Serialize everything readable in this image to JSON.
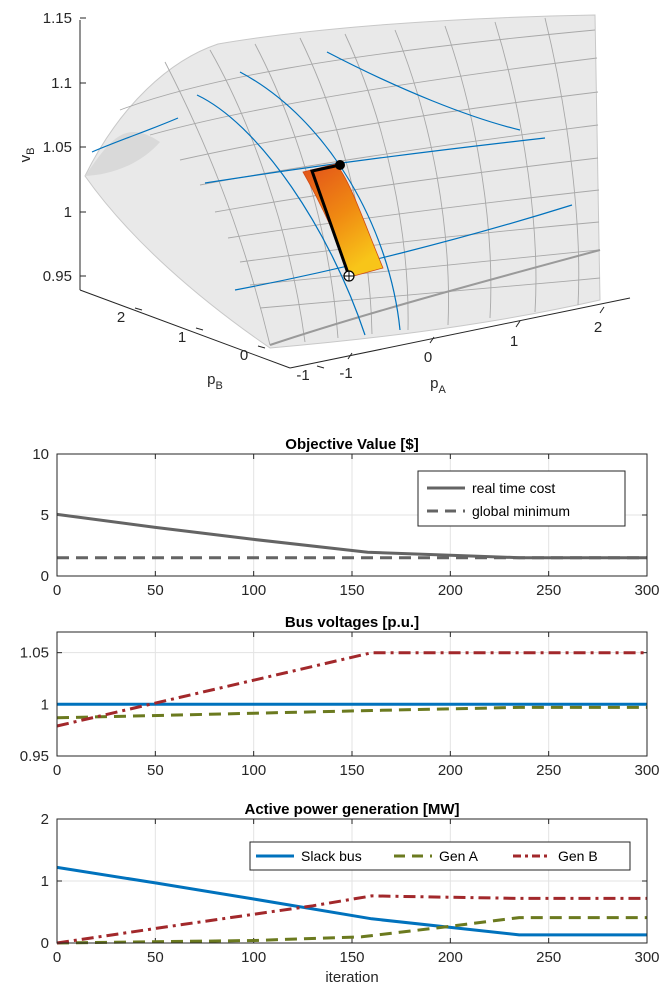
{
  "colors": {
    "gray": "#646464",
    "blue": "#0072BD",
    "olive": "#6B7A1F",
    "red": "#A2282B",
    "surface": "#E9E9E9",
    "grid": "#A5A5A5",
    "axis": "#262626"
  },
  "chart_data": [
    {
      "type": "surface3d",
      "zlabel": "v",
      "zlabel_sub": "B",
      "xlabel": "p",
      "xlabel_sub": "A",
      "ylabel": "p",
      "ylabel_sub": "B",
      "ztick_labels": [
        "0.95",
        "1",
        "1.05",
        "1.1",
        "1.15"
      ],
      "xtick_labels": [
        "-1",
        "0",
        "1",
        "2"
      ],
      "ytick_labels": [
        "-1",
        "0",
        "1",
        "2"
      ],
      "zlim": [
        0.95,
        1.15
      ],
      "feasible_region": "orange-yellow gradient patch",
      "trajectory": "black polyline from hollow start marker to filled end marker"
    },
    {
      "type": "line",
      "title": "Objective Value [$]",
      "xlim": [
        0,
        300
      ],
      "ylim": [
        0,
        10
      ],
      "xtick_labels": [
        "0",
        "50",
        "100",
        "150",
        "200",
        "250",
        "300"
      ],
      "ytick_labels": [
        "0",
        "5",
        "10"
      ],
      "grid": true,
      "legend_position": "top-right",
      "series": [
        {
          "name": "real time cost",
          "style": "solid",
          "color": "#646464",
          "points": [
            [
              0,
              5.05
            ],
            [
              50,
              3.98
            ],
            [
              100,
              3.0
            ],
            [
              158,
              1.95
            ],
            [
              200,
              1.7
            ],
            [
              235,
              1.5
            ],
            [
              300,
              1.5
            ]
          ]
        },
        {
          "name": "global minimum",
          "style": "dashed",
          "color": "#646464",
          "points": [
            [
              0,
              1.5
            ],
            [
              300,
              1.5
            ]
          ]
        }
      ]
    },
    {
      "type": "line",
      "title": "Bus voltages [p.u.]",
      "xlim": [
        0,
        300
      ],
      "ylim": [
        0.95,
        1.07
      ],
      "xtick_labels": [
        "0",
        "50",
        "100",
        "150",
        "200",
        "250",
        "300"
      ],
      "yticks": [
        0.95,
        1,
        1.05
      ],
      "ytick_labels": [
        "0.95",
        "1",
        "1.05"
      ],
      "grid": true,
      "series": [
        {
          "style": "solid",
          "color": "#0072BD",
          "points": [
            [
              0,
              1.0
            ],
            [
              300,
              1.0
            ]
          ]
        },
        {
          "style": "dashed",
          "color": "#6B7A1F",
          "points": [
            [
              0,
              0.987
            ],
            [
              160,
              0.994
            ],
            [
              235,
              0.997
            ],
            [
              300,
              0.997
            ]
          ]
        },
        {
          "style": "dashdot",
          "color": "#A2282B",
          "points": [
            [
              0,
              0.979
            ],
            [
              160,
              1.05
            ],
            [
              300,
              1.05
            ]
          ]
        }
      ]
    },
    {
      "type": "line",
      "title": "Active power generation [MW]",
      "xlabel": "iteration",
      "xlim": [
        0,
        300
      ],
      "ylim": [
        0,
        2
      ],
      "xtick_labels": [
        "0",
        "50",
        "100",
        "150",
        "200",
        "250",
        "300"
      ],
      "ytick_labels": [
        "0",
        "1",
        "2"
      ],
      "grid": true,
      "legend_position": "top-right",
      "series": [
        {
          "name": "Slack bus",
          "style": "solid",
          "color": "#0072BD",
          "points": [
            [
              0,
              1.22
            ],
            [
              50,
              0.97
            ],
            [
              100,
              0.71
            ],
            [
              160,
              0.39
            ],
            [
              235,
              0.13
            ],
            [
              300,
              0.13
            ]
          ]
        },
        {
          "name": "Gen A",
          "style": "dashed",
          "color": "#6B7A1F",
          "points": [
            [
              0,
              0.0
            ],
            [
              100,
              0.04
            ],
            [
              155,
              0.1
            ],
            [
              200,
              0.27
            ],
            [
              235,
              0.41
            ],
            [
              300,
              0.41
            ]
          ]
        },
        {
          "name": "Gen B",
          "style": "dashdot",
          "color": "#A2282B",
          "points": [
            [
              0,
              0.0
            ],
            [
              60,
              0.28
            ],
            [
              130,
              0.6
            ],
            [
              160,
              0.76
            ],
            [
              235,
              0.72
            ],
            [
              300,
              0.72
            ]
          ]
        }
      ]
    }
  ]
}
